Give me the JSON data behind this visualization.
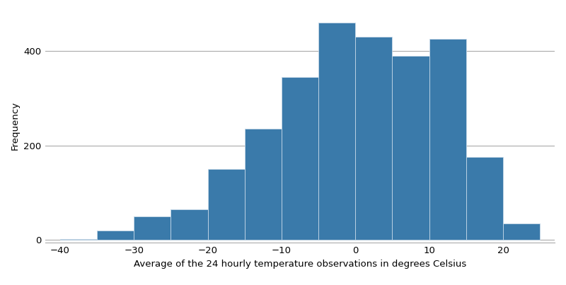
{
  "bin_edges": [
    -40,
    -35,
    -30,
    -25,
    -20,
    -15,
    -10,
    -5,
    0,
    5,
    10,
    15,
    20,
    25
  ],
  "frequencies": [
    2,
    20,
    50,
    65,
    150,
    235,
    345,
    460,
    430,
    390,
    425,
    175,
    35
  ],
  "bar_color": "#3a7aaa",
  "bar_edgecolor": "#c5d8e8",
  "xlabel": "Average of the 24 hourly temperature observations in degrees Celsius",
  "ylabel": "Frequency",
  "xlim": [
    -42,
    27
  ],
  "ylim": [
    -5,
    490
  ],
  "yticks": [
    0,
    200,
    400
  ],
  "xticks": [
    -40,
    -30,
    -20,
    -10,
    0,
    10,
    20
  ],
  "grid_color": "#aaaaaa",
  "grid_linewidth": 0.8,
  "background_color": "#ffffff",
  "xlabel_fontsize": 9.5,
  "ylabel_fontsize": 9.5,
  "tick_fontsize": 9.5
}
